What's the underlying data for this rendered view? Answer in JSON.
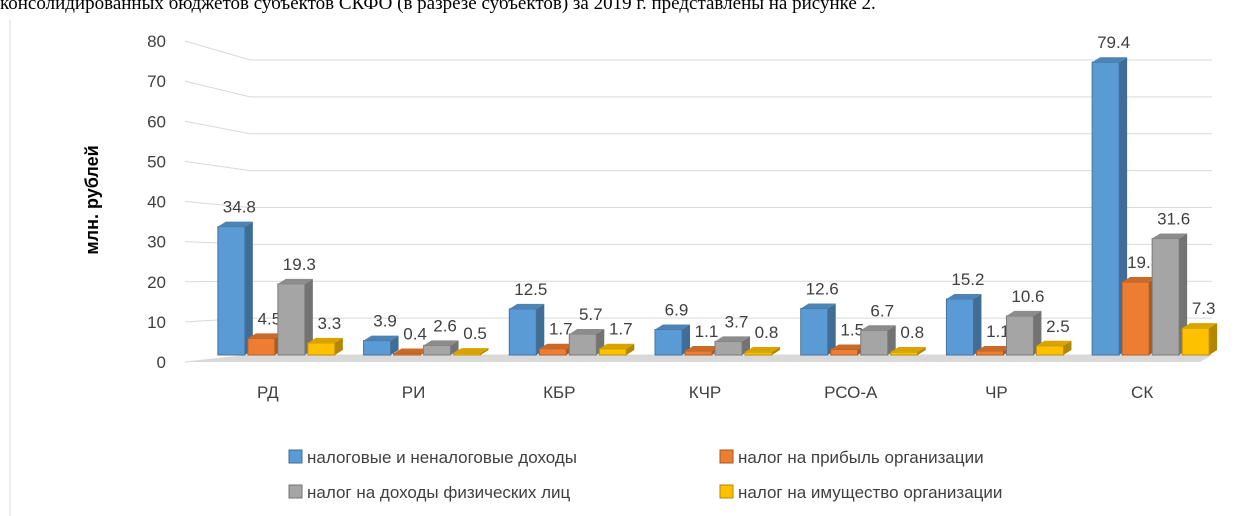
{
  "caption": "консолидированных бюджетов субъектов СКФО (в разрезе субъектов) за 2019 г. представлены на рисунке 2.",
  "chart_data": {
    "type": "bar3d",
    "y_label": "млн. рублей",
    "categories": [
      "РД",
      "РИ",
      "КБР",
      "КЧР",
      "РСО-А",
      "ЧР",
      "СК"
    ],
    "series": [
      {
        "name": "налоговые и неналоговые доходы",
        "color": "#5b9bd5",
        "values": [
          34.8,
          3.9,
          12.5,
          6.9,
          12.6,
          15.2,
          79.4
        ]
      },
      {
        "name": "налог на прибыль организации",
        "color": "#ed7d31",
        "values": [
          4.5,
          0.4,
          1.7,
          1.1,
          1.5,
          1.1,
          19.8
        ]
      },
      {
        "name": "налог на доходы физических лиц",
        "color": "#a5a5a5",
        "values": [
          19.3,
          2.6,
          5.7,
          3.7,
          6.7,
          10.6,
          31.6
        ]
      },
      {
        "name": "налог на имущество организации",
        "color": "#ffc000",
        "values": [
          3.3,
          0.5,
          1.7,
          0.8,
          0.8,
          2.5,
          7.3
        ]
      }
    ],
    "ylim": [
      0,
      80
    ],
    "yticks": [
      0,
      10,
      20,
      30,
      40,
      50,
      60,
      70,
      80
    ],
    "grid": true,
    "legend": "bottom"
  }
}
